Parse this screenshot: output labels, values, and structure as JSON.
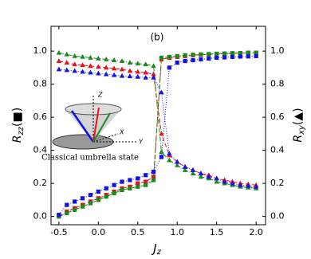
{
  "chart_data": {
    "type": "line",
    "annotation": "(b)",
    "inset": {
      "caption": "Classical umbrella state",
      "z_label": "Z",
      "x_label": "X",
      "y_label": "Y"
    },
    "x_label": {
      "main": "J",
      "sub": "z"
    },
    "y_label": {
      "main": "R",
      "sub": "zz",
      "marker": "(■)"
    },
    "y2_label": {
      "main": "R",
      "sub": "xy",
      "marker": "(▲)"
    },
    "xlim": [
      -0.6,
      2.12
    ],
    "ylim": [
      -0.05,
      1.15
    ],
    "y2lim": [
      -0.05,
      1.15
    ],
    "xticks": [
      -0.5,
      {
        "value": 0,
        "label": "0.0"
      },
      0.5,
      {
        "value": 1,
        "label": "1.0"
      },
      1.5,
      {
        "value": 2,
        "label": "2.0"
      }
    ],
    "yticks": [
      {
        "value": 0,
        "label": "0.0"
      },
      0.2,
      0.4,
      0.6,
      0.8,
      {
        "value": 1,
        "label": "1.0"
      }
    ],
    "y2ticks": [
      {
        "value": 0,
        "label": "0.0"
      },
      0.2,
      0.4,
      0.6,
      0.8,
      {
        "value": 1,
        "label": "1.0"
      }
    ],
    "x": [
      -0.5,
      -0.4,
      -0.3,
      -0.2,
      -0.1,
      0,
      0.1,
      0.2,
      0.3,
      0.4,
      0.5,
      0.6,
      0.7,
      0.8,
      0.9,
      1.0,
      1.1,
      1.2,
      1.3,
      1.4,
      1.5,
      1.6,
      1.7,
      1.8,
      1.9,
      2.0
    ],
    "series": [
      {
        "marker": "square",
        "linestyle": "dashed",
        "color": "#e8101a",
        "values": [
          0.0,
          0.03,
          0.05,
          0.07,
          0.09,
          0.11,
          0.13,
          0.15,
          0.17,
          0.18,
          0.2,
          0.21,
          0.24,
          0.95,
          0.96,
          0.965,
          0.97,
          0.975,
          0.978,
          0.98,
          0.982,
          0.985,
          0.987,
          0.988,
          0.99,
          0.99
        ]
      },
      {
        "marker": "square",
        "linestyle": "dashdot",
        "color": "#1a8a1a",
        "values": [
          0.0,
          0.02,
          0.04,
          0.06,
          0.08,
          0.1,
          0.12,
          0.14,
          0.16,
          0.17,
          0.18,
          0.19,
          0.22,
          0.96,
          0.965,
          0.97,
          0.975,
          0.978,
          0.98,
          0.982,
          0.984,
          0.985,
          0.987,
          0.988,
          0.99,
          0.99
        ]
      },
      {
        "marker": "square",
        "linestyle": "dotted",
        "color": "#1010e8",
        "values": [
          0.01,
          0.07,
          0.09,
          0.11,
          0.13,
          0.15,
          0.17,
          0.19,
          0.21,
          0.22,
          0.23,
          0.25,
          0.27,
          0.36,
          0.9,
          0.93,
          0.94,
          0.945,
          0.95,
          0.955,
          0.96,
          0.962,
          0.965,
          0.967,
          0.968,
          0.97
        ]
      },
      {
        "marker": "triangle",
        "linestyle": "dashed",
        "color": "#e8101a",
        "axis": "y2",
        "values": [
          0.94,
          0.93,
          0.92,
          0.915,
          0.91,
          0.905,
          0.9,
          0.895,
          0.89,
          0.88,
          0.875,
          0.87,
          0.86,
          0.5,
          0.37,
          0.33,
          0.3,
          0.28,
          0.26,
          0.25,
          0.23,
          0.22,
          0.21,
          0.2,
          0.195,
          0.19
        ]
      },
      {
        "marker": "triangle",
        "linestyle": "dashdot",
        "color": "#1a8a1a",
        "axis": "y2",
        "values": [
          0.99,
          0.98,
          0.97,
          0.965,
          0.96,
          0.955,
          0.95,
          0.945,
          0.94,
          0.93,
          0.925,
          0.92,
          0.91,
          0.39,
          0.34,
          0.31,
          0.28,
          0.26,
          0.24,
          0.23,
          0.21,
          0.2,
          0.19,
          0.18,
          0.175,
          0.17
        ]
      },
      {
        "marker": "triangle",
        "linestyle": "dotted",
        "color": "#1010e8",
        "axis": "y2",
        "values": [
          0.89,
          0.885,
          0.88,
          0.875,
          0.87,
          0.865,
          0.86,
          0.855,
          0.85,
          0.848,
          0.845,
          0.84,
          0.84,
          0.75,
          0.38,
          0.33,
          0.3,
          0.28,
          0.26,
          0.24,
          0.23,
          0.21,
          0.2,
          0.19,
          0.185,
          0.18
        ]
      }
    ]
  }
}
